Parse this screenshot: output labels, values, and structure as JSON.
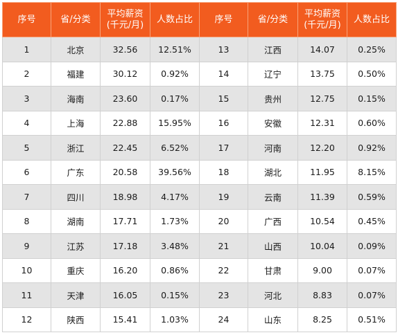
{
  "header": {
    "rank": "序号",
    "province": "省/分类",
    "salary_line1": "平均薪资",
    "salary_line2": "(千元/月)",
    "share": "人数占比"
  },
  "rows": [
    {
      "left": {
        "rank": "1",
        "province": "北京",
        "salary": "32.56",
        "share": "12.51%"
      },
      "right": {
        "rank": "13",
        "province": "江西",
        "salary": "14.07",
        "share": "0.25%"
      }
    },
    {
      "left": {
        "rank": "2",
        "province": "福建",
        "salary": "30.12",
        "share": "0.92%"
      },
      "right": {
        "rank": "14",
        "province": "辽宁",
        "salary": "13.75",
        "share": "0.50%"
      }
    },
    {
      "left": {
        "rank": "3",
        "province": "海南",
        "salary": "23.60",
        "share": "0.17%"
      },
      "right": {
        "rank": "15",
        "province": "贵州",
        "salary": "12.75",
        "share": "0.15%"
      }
    },
    {
      "left": {
        "rank": "4",
        "province": "上海",
        "salary": "22.88",
        "share": "15.95%"
      },
      "right": {
        "rank": "16",
        "province": "安徽",
        "salary": "12.31",
        "share": "0.60%"
      }
    },
    {
      "left": {
        "rank": "5",
        "province": "浙江",
        "salary": "22.45",
        "share": "6.52%"
      },
      "right": {
        "rank": "17",
        "province": "河南",
        "salary": "12.20",
        "share": "0.92%"
      }
    },
    {
      "left": {
        "rank": "6",
        "province": "广东",
        "salary": "20.58",
        "share": "39.56%"
      },
      "right": {
        "rank": "18",
        "province": "湖北",
        "salary": "11.95",
        "share": "8.15%"
      }
    },
    {
      "left": {
        "rank": "7",
        "province": "四川",
        "salary": "18.98",
        "share": "4.17%"
      },
      "right": {
        "rank": "19",
        "province": "云南",
        "salary": "11.39",
        "share": "0.59%"
      }
    },
    {
      "left": {
        "rank": "8",
        "province": "湖南",
        "salary": "17.71",
        "share": "1.73%"
      },
      "right": {
        "rank": "20",
        "province": "广西",
        "salary": "10.54",
        "share": "0.45%"
      }
    },
    {
      "left": {
        "rank": "9",
        "province": "江苏",
        "salary": "17.18",
        "share": "3.48%"
      },
      "right": {
        "rank": "21",
        "province": "山西",
        "salary": "10.04",
        "share": "0.09%"
      }
    },
    {
      "left": {
        "rank": "10",
        "province": "重庆",
        "salary": "16.20",
        "share": "0.86%"
      },
      "right": {
        "rank": "22",
        "province": "甘肃",
        "salary": "9.00",
        "share": "0.07%"
      }
    },
    {
      "left": {
        "rank": "11",
        "province": "天津",
        "salary": "16.05",
        "share": "0.15%"
      },
      "right": {
        "rank": "23",
        "province": "河北",
        "salary": "8.83",
        "share": "0.07%"
      }
    },
    {
      "left": {
        "rank": "12",
        "province": "陕西",
        "salary": "15.41",
        "share": "1.03%"
      },
      "right": {
        "rank": "24",
        "province": "山东",
        "salary": "8.25",
        "share": "0.51%"
      }
    }
  ],
  "colors": {
    "header_bg": "#f25c1f",
    "header_text": "#ffffff",
    "stripe_gray": "#e4e4e4",
    "stripe_white": "#ffffff",
    "border": "#d0d0d0"
  }
}
